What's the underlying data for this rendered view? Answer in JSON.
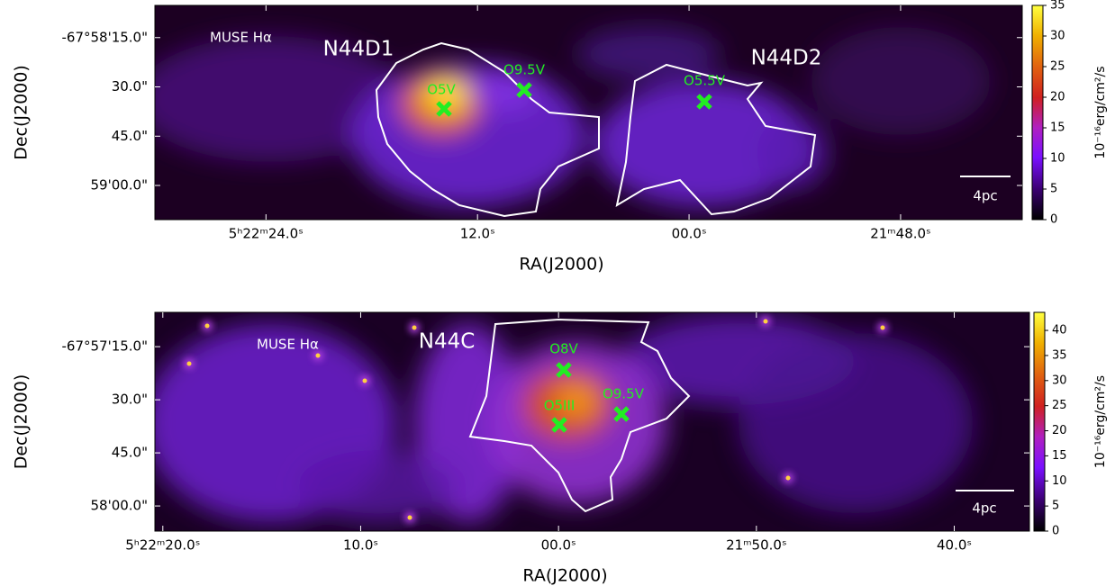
{
  "chart_data": [
    {
      "type": "image",
      "title": "MUSE Hα",
      "regions": [
        "N44D1",
        "N44D2"
      ],
      "stars": [
        "O5V",
        "O9.5V",
        "O5.5V"
      ],
      "xlabel": "RA(J2000)",
      "ylabel": "Dec(J2000)",
      "xlim": [
        30.3,
        -18.9
      ],
      "xticks": [
        {
          "value": 24,
          "label": "5ʰ22ᵐ24.0ˢ"
        },
        {
          "value": 12,
          "label": "12.0ˢ"
        },
        {
          "value": 0,
          "label": "00.0ˢ"
        },
        {
          "value": -12,
          "label": "21ᵐ48.0ˢ"
        }
      ],
      "ylim": [
        5.2,
        70.4
      ],
      "yticks": [
        {
          "value": 15,
          "label": "-67°58'15.0\""
        },
        {
          "value": 30,
          "label": "30.0\""
        },
        {
          "value": 45,
          "label": "45.0\""
        },
        {
          "value": 60,
          "label": "59'00.0\""
        }
      ],
      "scale_bar": "4pc",
      "colorbar": {
        "label": "10⁻¹⁶erg/cm²/s",
        "ylim": [
          0,
          35
        ],
        "yticks": [
          0,
          5,
          10,
          15,
          20,
          25,
          30,
          35
        ]
      }
    },
    {
      "type": "image",
      "title": "MUSE Hα",
      "regions": [
        "N44C"
      ],
      "stars": [
        "O8V",
        "O5III",
        "O9.5V"
      ],
      "xlabel": "RA(J2000)",
      "ylabel": "Dec(J2000)",
      "xlim": [
        20.4,
        -23.8
      ],
      "xticks": [
        {
          "value": 20,
          "label": "5ʰ22ᵐ20.0ˢ"
        },
        {
          "value": 10,
          "label": "10.0ˢ"
        },
        {
          "value": 0,
          "label": "00.0ˢ"
        },
        {
          "value": -10,
          "label": "21ᵐ50.0ˢ"
        },
        {
          "value": -20,
          "label": "40.0ˢ"
        }
      ],
      "ylim": [
        5.3,
        67.1
      ],
      "yticks": [
        {
          "value": 15,
          "label": "-67°57'15.0\""
        },
        {
          "value": 30,
          "label": "30.0\""
        },
        {
          "value": 45,
          "label": "45.0\""
        },
        {
          "value": 60,
          "label": "58'00.0\""
        }
      ],
      "scale_bar": "4pc",
      "colorbar": {
        "label": "10⁻¹⁶erg/cm²/s",
        "ylim": [
          0,
          43.6
        ],
        "yticks": [
          0,
          5,
          10,
          15,
          20,
          25,
          30,
          35,
          40
        ]
      }
    }
  ]
}
